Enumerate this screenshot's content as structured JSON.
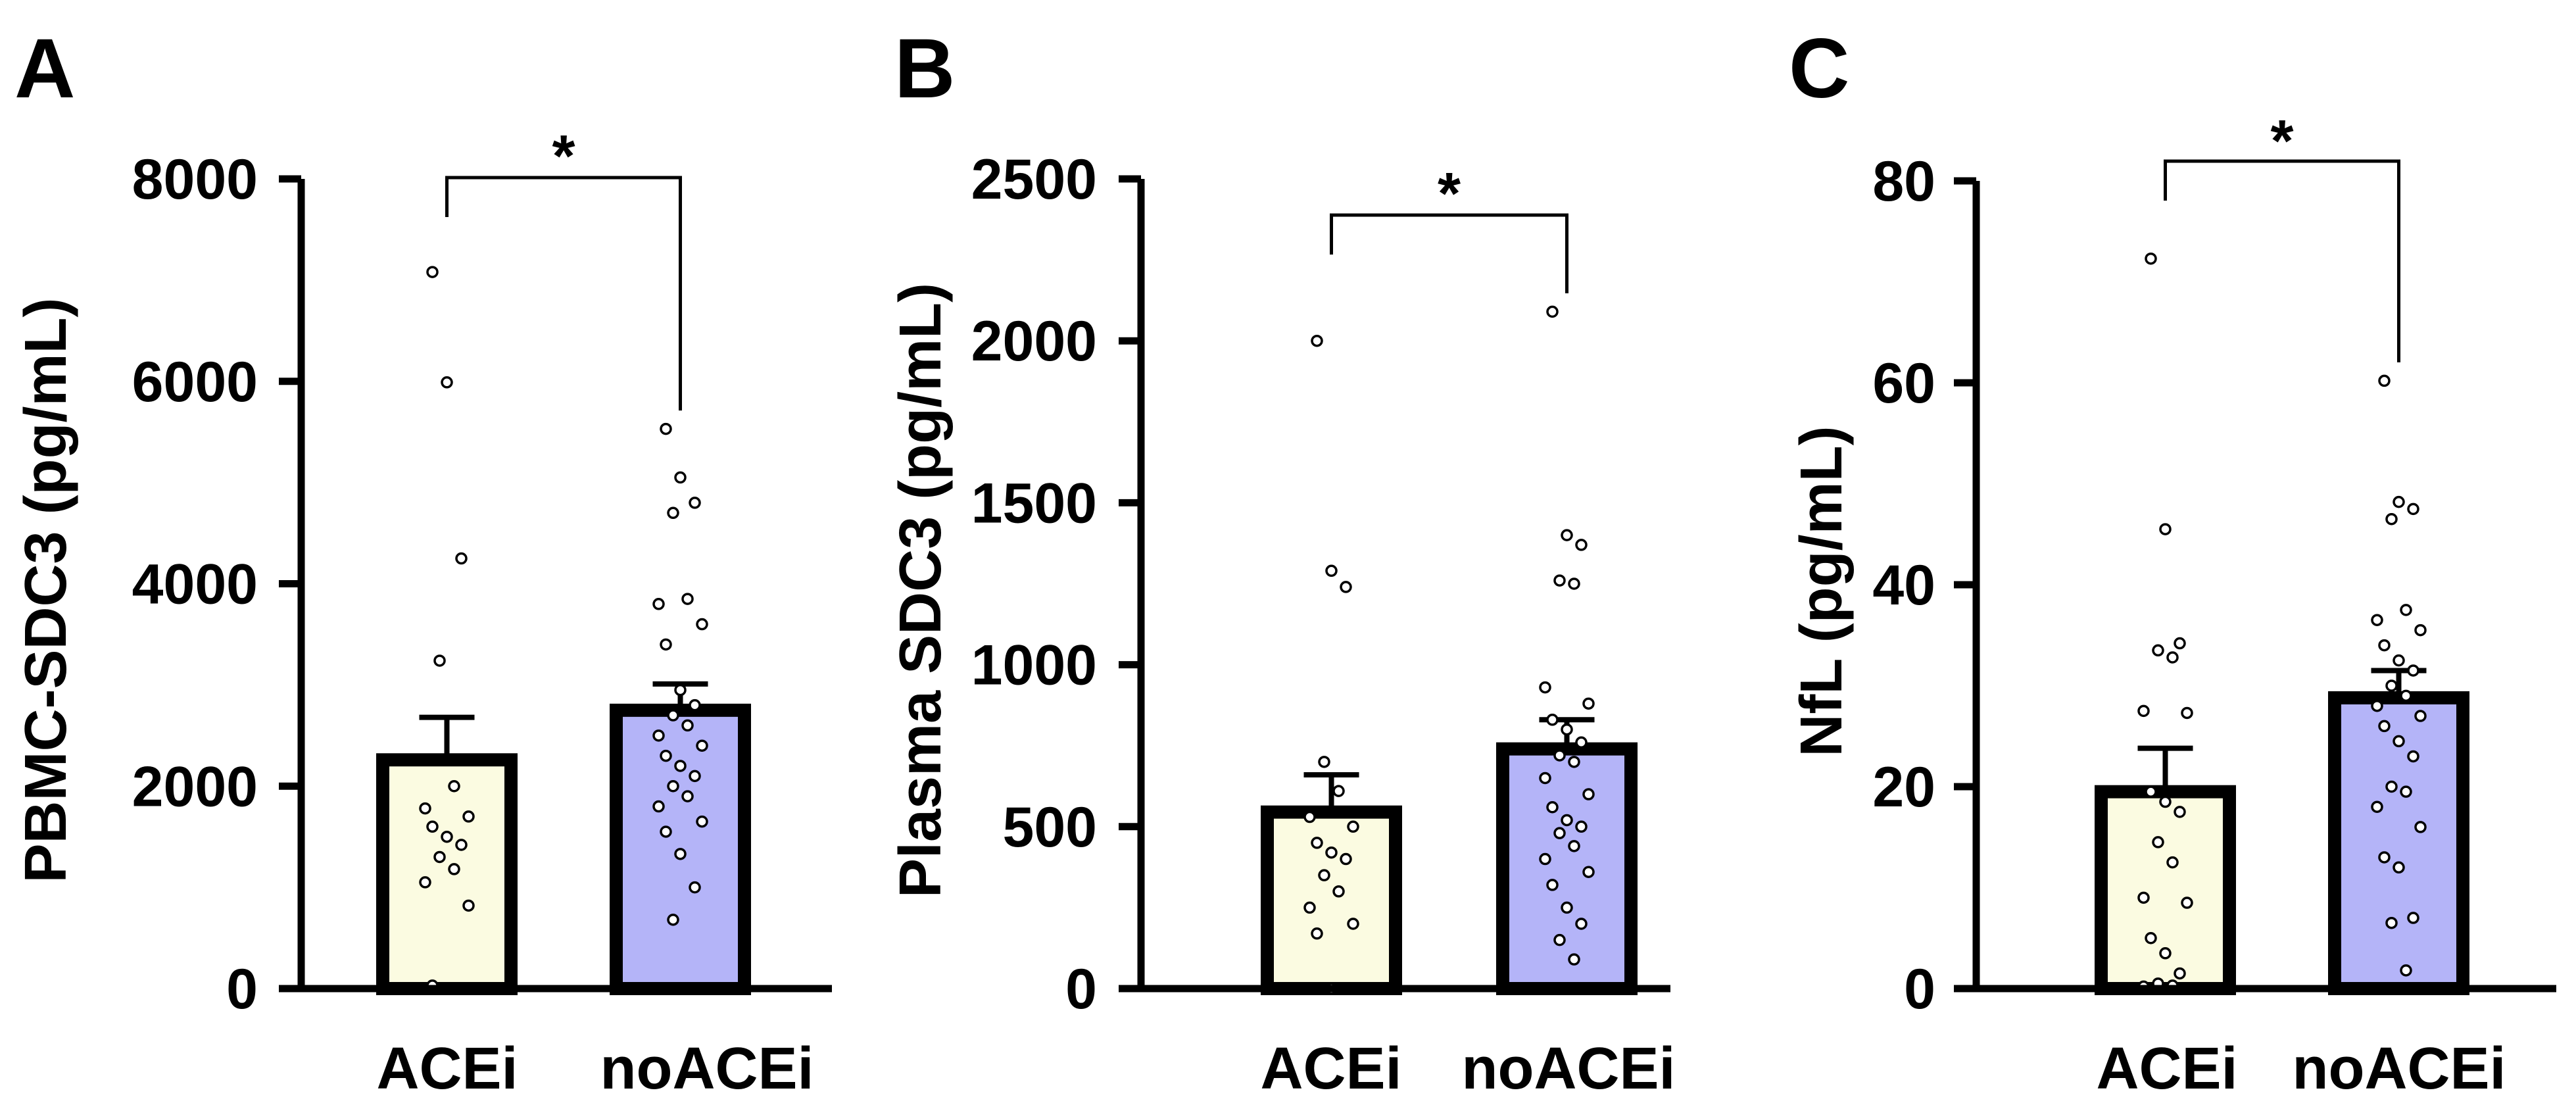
{
  "colors": {
    "ACEi": "#fbfbe1",
    "noACEi": "#b4b4f8",
    "stroke": "#000000"
  },
  "chart_data": [
    {
      "panel": "A",
      "type": "bar",
      "title": "",
      "xlabel": "",
      "ylabel": "PBMC-SDC3 (pg/mL)",
      "ylim": [
        0,
        8000
      ],
      "yticks": [
        0,
        2000,
        4000,
        6000,
        8000
      ],
      "ytick_labels": [
        "0",
        "2000",
        "4000",
        "6000",
        "8000"
      ],
      "categories": [
        "ACEi",
        "noACEi"
      ],
      "values": [
        2260,
        2750
      ],
      "sem": [
        420,
        260
      ],
      "points": [
        [
          7080,
          5990,
          4250,
          3240,
          2000,
          1780,
          1700,
          1600,
          1500,
          1420,
          1300,
          1180,
          1050,
          820,
          30
        ],
        [
          5530,
          5050,
          4800,
          4700,
          3850,
          3800,
          3600,
          3400,
          2950,
          2800,
          2700,
          2600,
          2500,
          2400,
          2300,
          2200,
          2100,
          2000,
          1900,
          1800,
          1650,
          1550,
          1330,
          1000,
          680
        ]
      ],
      "significance": "*"
    },
    {
      "panel": "B",
      "type": "bar",
      "title": "",
      "xlabel": "",
      "ylabel": "Plasma SDC3 (pg/mL)",
      "ylim": [
        0,
        2500
      ],
      "yticks": [
        0,
        500,
        1000,
        1500,
        2000,
        2500
      ],
      "ytick_labels": [
        "0",
        "500",
        "1000",
        "1500",
        "2000",
        "2500"
      ],
      "categories": [
        "ACEi",
        "noACEi"
      ],
      "values": [
        545,
        740
      ],
      "sem": [
        115,
        90
      ],
      "points": [
        [
          2000,
          1290,
          1240,
          700,
          610,
          530,
          500,
          450,
          420,
          400,
          350,
          300,
          250,
          200,
          170,
          0
        ],
        [
          2090,
          1400,
          1370,
          1260,
          1250,
          930,
          880,
          830,
          800,
          760,
          720,
          700,
          650,
          600,
          560,
          520,
          500,
          480,
          440,
          400,
          360,
          320,
          250,
          200,
          150,
          90
        ]
      ],
      "significance": "*"
    },
    {
      "panel": "C",
      "type": "bar",
      "title": "",
      "xlabel": "",
      "ylabel": "NfL (pg/mL)",
      "ylim": [
        0,
        80
      ],
      "yticks": [
        0,
        20,
        40,
        60,
        80
      ],
      "ytick_labels": [
        "0",
        "20",
        "40",
        "60",
        "80"
      ],
      "categories": [
        "ACEi",
        "noACEi"
      ],
      "values": [
        19.5,
        28.8
      ],
      "sem": [
        4.3,
        2.7
      ],
      "points": [
        [
          72.3,
          45.5,
          34.2,
          33.5,
          32.8,
          27.5,
          27.3,
          19.5,
          18.5,
          17.5,
          14.5,
          12.5,
          9.0,
          8.5,
          5.0,
          3.5,
          1.5,
          0.5,
          0.3,
          0.2
        ],
        [
          60.2,
          48.2,
          47.5,
          46.5,
          37.5,
          36.5,
          35.5,
          34.0,
          32.5,
          31.5,
          30.0,
          29.0,
          28.0,
          27.0,
          26.0,
          24.5,
          23.0,
          20.0,
          19.5,
          18.0,
          16.0,
          13.0,
          12.0,
          7.0,
          6.5,
          1.8
        ]
      ],
      "significance": "*"
    }
  ]
}
